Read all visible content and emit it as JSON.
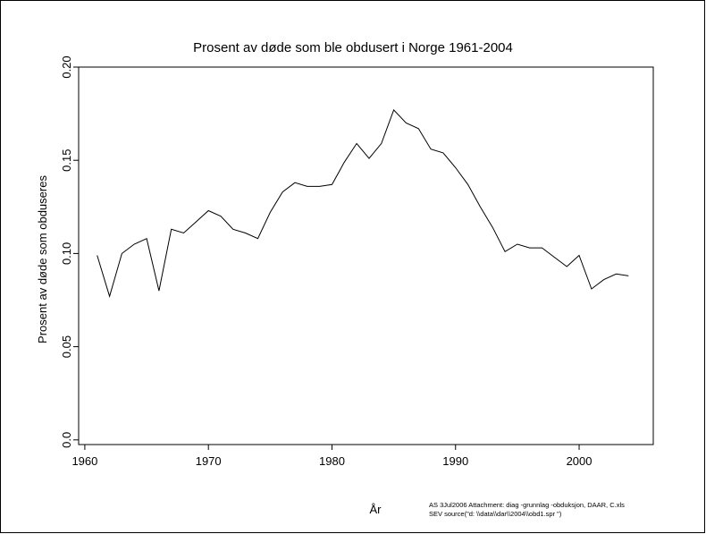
{
  "chart_data": {
    "type": "line",
    "title": "Prosent av døde som ble obdusert i Norge 1961-2004",
    "xlabel": "År",
    "ylabel": "Prosent av døde som obduseres",
    "xlim": [
      1959.5,
      2006
    ],
    "ylim": [
      -0.0025,
      0.2
    ],
    "x_ticks": [
      1960,
      1970,
      1980,
      1990,
      2000
    ],
    "y_ticks": [
      0.0,
      0.05,
      0.1,
      0.15,
      0.2
    ],
    "y_tick_labels": [
      "0.0",
      "0.05",
      "0.10",
      "0.15",
      "0.20"
    ],
    "grid": false,
    "series": [
      {
        "x": [
          1961,
          1962,
          1963,
          1964,
          1965,
          1966,
          1967,
          1968,
          1969,
          1970,
          1971,
          1972,
          1973,
          1974,
          1975,
          1976,
          1977,
          1978,
          1979,
          1980,
          1981,
          1982,
          1983,
          1984,
          1985,
          1986,
          1987,
          1988,
          1989,
          1990,
          1991,
          1992,
          1993,
          1994,
          1995,
          1996,
          1997,
          1998,
          1999,
          2000,
          2001,
          2002,
          2003,
          2004
        ],
        "values": [
          0.099,
          0.077,
          0.1,
          0.105,
          0.108,
          0.08,
          0.113,
          0.111,
          0.117,
          0.123,
          0.12,
          0.113,
          0.111,
          0.108,
          0.122,
          0.133,
          0.138,
          0.136,
          0.136,
          0.137,
          0.149,
          0.159,
          0.151,
          0.159,
          0.177,
          0.17,
          0.167,
          0.156,
          0.154,
          0.146,
          0.137,
          0.125,
          0.114,
          0.101,
          0.105,
          0.103,
          0.103,
          0.098,
          0.093,
          0.099,
          0.081,
          0.086,
          0.089,
          0.088
        ]
      }
    ]
  },
  "footnote": {
    "line1": "AS 3Jul2006 Attachment: diag   -grunnlag -obduksjon, DAAR, C.xls",
    "line2": "SEV source(\"d:  \\\\data\\\\dar\\\\2004\\\\obd1.spr \")"
  }
}
